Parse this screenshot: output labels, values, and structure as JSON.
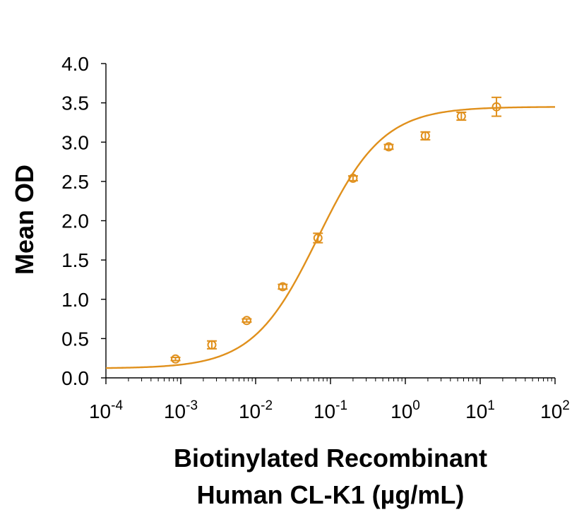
{
  "chart_data": {
    "type": "scatter",
    "title": "",
    "ylabel": "Mean OD",
    "xlabel_lines": [
      "Biotinylated Recombinant",
      "Human CL-K1 (µg/mL)"
    ],
    "x_scale": "log",
    "xlim": [
      0.0001,
      100
    ],
    "ylim": [
      0,
      4.0
    ],
    "y_ticks": [
      0.0,
      0.5,
      1.0,
      1.5,
      2.0,
      2.5,
      3.0,
      3.5,
      4.0
    ],
    "y_tick_labels": [
      "0.0",
      "0.5",
      "1.0",
      "1.5",
      "2.0",
      "2.5",
      "3.0",
      "3.5",
      "4.0"
    ],
    "x_ticks": [
      {
        "base": "10",
        "exp": "-4",
        "value": 0.0001
      },
      {
        "base": "10",
        "exp": "-3",
        "value": 0.001
      },
      {
        "base": "10",
        "exp": "-2",
        "value": 0.01
      },
      {
        "base": "10",
        "exp": "-1",
        "value": 0.1
      },
      {
        "base": "10",
        "exp": "0",
        "value": 1
      },
      {
        "base": "10",
        "exp": "1",
        "value": 10
      },
      {
        "base": "10",
        "exp": "2",
        "value": 100
      }
    ],
    "grid": false,
    "legend": "none",
    "color": "#E0901C",
    "series": [
      {
        "points": [
          {
            "x": 0.00085,
            "y": 0.24,
            "err": 0.02
          },
          {
            "x": 0.0026,
            "y": 0.42,
            "err": 0.05
          },
          {
            "x": 0.0076,
            "y": 0.73,
            "err": 0.02
          },
          {
            "x": 0.023,
            "y": 1.16,
            "err": 0.03
          },
          {
            "x": 0.068,
            "y": 1.78,
            "err": 0.06
          },
          {
            "x": 0.2,
            "y": 2.54,
            "err": 0.03
          },
          {
            "x": 0.6,
            "y": 2.94,
            "err": 0.03
          },
          {
            "x": 1.85,
            "y": 3.08,
            "err": 0.05
          },
          {
            "x": 5.6,
            "y": 3.33,
            "err": 0.05
          },
          {
            "x": 16.5,
            "y": 3.45,
            "err": 0.12
          }
        ],
        "fit": {
          "model": "4PL",
          "bottom": 0.12,
          "top": 3.45,
          "ec50": 0.068,
          "hill": 1.0
        }
      }
    ]
  }
}
